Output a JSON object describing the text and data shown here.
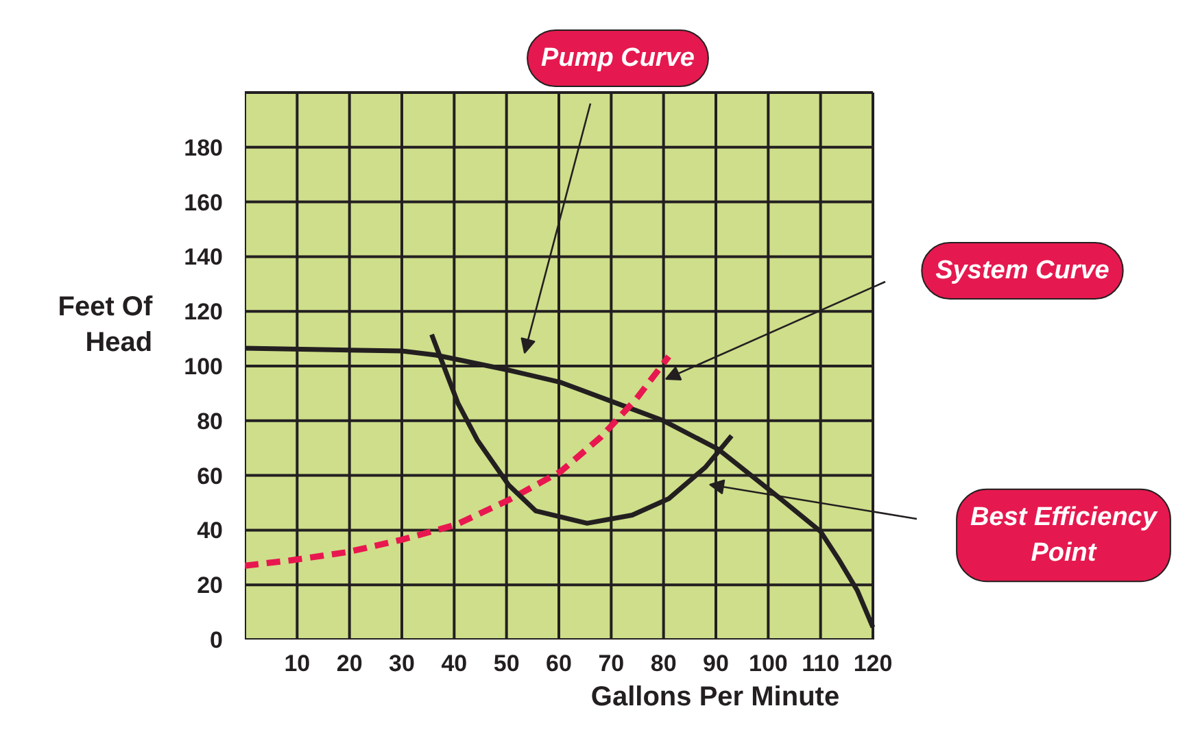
{
  "chart_data": {
    "type": "line",
    "xlabel": "Gallons Per Minute",
    "ylabel": "Feet Of\nHead",
    "xlim": [
      0,
      120
    ],
    "ylim": [
      0,
      200
    ],
    "xticks": [
      {
        "value": 0,
        "label": null
      },
      10,
      20,
      30,
      40,
      50,
      60,
      70,
      80,
      90,
      100,
      110,
      120
    ],
    "yticks": [
      0,
      20,
      40,
      60,
      80,
      100,
      120,
      140,
      160,
      180,
      {
        "value": 200,
        "label": null
      }
    ],
    "grid": true,
    "marker": "none",
    "series": [
      {
        "color": "#231f20",
        "line_style": "solid",
        "x": [
          0,
          30,
          36.5,
          50.4,
          60.4,
          73,
          80,
          90.5,
          102,
          110,
          113.4,
          117,
          120
        ],
        "values": [
          106.5,
          105.5,
          104,
          98.5,
          94,
          85,
          80,
          69.5,
          52,
          39.5,
          29.5,
          18,
          4.5
        ]
      },
      {
        "color": "#e8174f",
        "line_style": "dashed",
        "x": [
          0,
          9,
          19.7,
          30,
          40.4,
          50.4,
          60.4,
          68,
          74.8,
          81
        ],
        "values": [
          27,
          29,
          32,
          36.5,
          42,
          51,
          61.5,
          74,
          88,
          103.5
        ]
      },
      {
        "color": "#231f20",
        "line_style": "solid",
        "x": [
          35.7,
          40.7,
          44.4,
          50.4,
          55.6,
          65.4,
          74,
          81,
          88,
          93
        ],
        "values": [
          111.5,
          86.5,
          73,
          56.5,
          47,
          42.5,
          45.5,
          51.5,
          63,
          74.5
        ]
      }
    ],
    "annotations": [
      "Pump Curve",
      "System Curve",
      "Best Efficiency\nPoint"
    ]
  }
}
